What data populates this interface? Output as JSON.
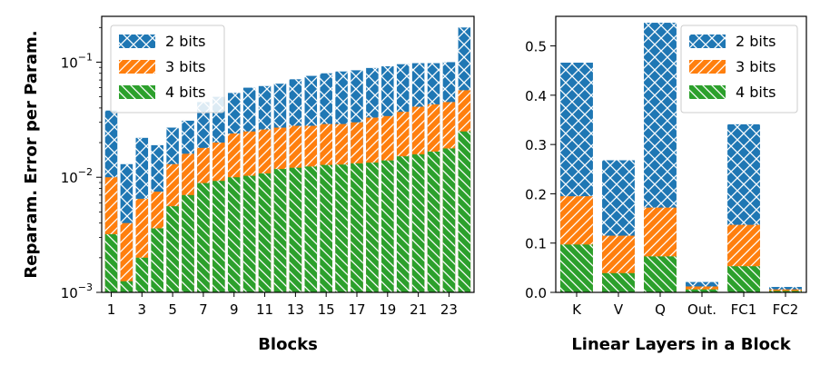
{
  "colors": {
    "b2": "#1f77b4",
    "b3": "#ff7f0e",
    "b4": "#2ca02c"
  },
  "legend": [
    "2 bits",
    "3 bits",
    "4 bits"
  ],
  "chart_data": [
    {
      "type": "bar",
      "ylog": true,
      "ylim": [
        0.001,
        0.25
      ],
      "ylabel": "Reparam. Error per Param.",
      "xlabel": "Blocks",
      "ytick_labels": [
        "10−3",
        "10−2",
        "10−1"
      ],
      "xtick_labels": [
        "1",
        "3",
        "5",
        "7",
        "9",
        "11",
        "13",
        "15",
        "17",
        "19",
        "21",
        "23"
      ],
      "categories": [
        "1",
        "2",
        "3",
        "4",
        "5",
        "6",
        "7",
        "8",
        "9",
        "10",
        "11",
        "12",
        "13",
        "14",
        "15",
        "16",
        "17",
        "18",
        "19",
        "20",
        "21",
        "22",
        "23",
        "24"
      ],
      "series": [
        {
          "name": "2 bits",
          "values": [
            0.038,
            0.013,
            0.022,
            0.019,
            0.027,
            0.031,
            0.045,
            0.05,
            0.054,
            0.06,
            0.062,
            0.065,
            0.071,
            0.076,
            0.08,
            0.083,
            0.085,
            0.089,
            0.092,
            0.096,
            0.098,
            0.098,
            0.1,
            0.2
          ]
        },
        {
          "name": "3 bits",
          "values": [
            0.01,
            0.004,
            0.0065,
            0.0075,
            0.013,
            0.016,
            0.018,
            0.02,
            0.024,
            0.025,
            0.026,
            0.027,
            0.028,
            0.028,
            0.029,
            0.029,
            0.03,
            0.033,
            0.034,
            0.037,
            0.041,
            0.043,
            0.045,
            0.057
          ]
        },
        {
          "name": "4 bits",
          "values": [
            0.0032,
            0.00125,
            0.002,
            0.0036,
            0.0056,
            0.007,
            0.0089,
            0.0093,
            0.01,
            0.0103,
            0.0108,
            0.0118,
            0.0121,
            0.0124,
            0.0128,
            0.0129,
            0.0132,
            0.0134,
            0.014,
            0.0152,
            0.0158,
            0.0167,
            0.0178,
            0.025
          ]
        }
      ]
    },
    {
      "type": "bar",
      "ylim": [
        0,
        0.56
      ],
      "xlabel": "Linear Layers in a Block",
      "ytick_labels": [
        "0.0",
        "0.1",
        "0.2",
        "0.3",
        "0.4",
        "0.5"
      ],
      "categories": [
        "K",
        "V",
        "Q",
        "Out.",
        "FC1",
        "FC2"
      ],
      "series": [
        {
          "name": "2 bits",
          "values": [
            0.466,
            0.268,
            0.547,
            0.021,
            0.341,
            0.011
          ]
        },
        {
          "name": "3 bits",
          "values": [
            0.195,
            0.115,
            0.172,
            0.012,
            0.137,
            0.006
          ]
        },
        {
          "name": "4 bits",
          "values": [
            0.097,
            0.039,
            0.073,
            0.006,
            0.053,
            0.003
          ]
        }
      ]
    }
  ]
}
